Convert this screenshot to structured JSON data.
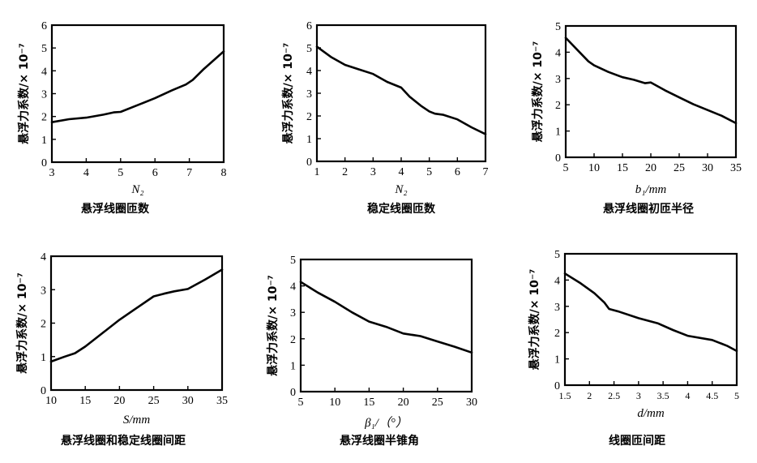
{
  "chart_data": [
    {
      "type": "line",
      "xlabel": "N₂",
      "ylabel": "悬浮力系数/× 10⁻⁷",
      "title": "悬浮线圈匝数",
      "xlim": [
        3,
        8
      ],
      "ylim": [
        0,
        6
      ],
      "xticks": [
        "3",
        "4",
        "5",
        "6",
        "7",
        "8"
      ],
      "yticks": [
        "0",
        "1",
        "2",
        "3",
        "4",
        "5",
        "6"
      ],
      "series": [
        {
          "x": [
            3,
            3.5,
            4,
            4.5,
            4.8,
            5,
            5.5,
            6,
            6.5,
            6.9,
            7.1,
            7.4,
            8
          ],
          "y": [
            1.75,
            1.88,
            1.95,
            2.08,
            2.18,
            2.2,
            2.5,
            2.8,
            3.15,
            3.4,
            3.6,
            4.05,
            4.85
          ]
        }
      ]
    },
    {
      "type": "line",
      "xlabel": "N₂",
      "ylabel": "悬浮力系数/× 10⁻⁷",
      "title": "稳定线圈匝数",
      "xlim": [
        1,
        7
      ],
      "ylim": [
        0,
        6
      ],
      "xticks": [
        "1",
        "2",
        "3",
        "4",
        "5",
        "6",
        "7"
      ],
      "yticks": [
        "0",
        "1",
        "2",
        "3",
        "4",
        "5",
        "6"
      ],
      "series": [
        {
          "x": [
            1,
            1.5,
            2,
            2.5,
            3,
            3.5,
            4,
            4.3,
            4.7,
            5,
            5.2,
            5.5,
            6,
            6.5,
            7
          ],
          "y": [
            5.05,
            4.6,
            4.25,
            4.05,
            3.85,
            3.5,
            3.25,
            2.85,
            2.45,
            2.2,
            2.1,
            2.05,
            1.85,
            1.5,
            1.2
          ]
        }
      ]
    },
    {
      "type": "line",
      "xlabel": "b₁/mm",
      "ylabel": "悬浮力系数/× 10⁻⁷",
      "title": "悬浮线圈初匝半径",
      "xlim": [
        5,
        35
      ],
      "ylim": [
        0,
        5
      ],
      "xticks": [
        "5",
        "10",
        "15",
        "20",
        "25",
        "30",
        "35"
      ],
      "yticks": [
        "0",
        "1",
        "2",
        "3",
        "4",
        "5"
      ],
      "series": [
        {
          "x": [
            5,
            7,
            9,
            10,
            12.5,
            15,
            17,
            19,
            20,
            22.5,
            25,
            27.5,
            30,
            32.5,
            35
          ],
          "y": [
            4.55,
            4.1,
            3.65,
            3.5,
            3.25,
            3.05,
            2.95,
            2.82,
            2.85,
            2.55,
            2.28,
            2.02,
            1.8,
            1.58,
            1.3
          ]
        }
      ]
    },
    {
      "type": "line",
      "xlabel": "S/mm",
      "ylabel": "悬浮力系数/× 10⁻⁷",
      "title": "悬浮线圈和稳定线圈间距",
      "xlim": [
        10,
        35
      ],
      "ylim": [
        0,
        4
      ],
      "xticks": [
        "10",
        "15",
        "20",
        "25",
        "30",
        "35"
      ],
      "yticks": [
        "0",
        "1",
        "2",
        "3",
        "4"
      ],
      "series": [
        {
          "x": [
            10,
            12,
            13.5,
            15,
            17.5,
            20,
            22.5,
            25,
            26.5,
            28,
            30,
            32.5,
            35
          ],
          "y": [
            0.85,
            1.0,
            1.1,
            1.3,
            1.7,
            2.1,
            2.45,
            2.8,
            2.88,
            2.95,
            3.02,
            3.3,
            3.6
          ]
        }
      ]
    },
    {
      "type": "line",
      "xlabel": "β₁/（°）",
      "ylabel": "悬浮力系数/× 10⁻⁷",
      "title": "悬浮线圈半锥角",
      "xlim": [
        5,
        30
      ],
      "ylim": [
        0,
        5
      ],
      "xticks": [
        "5",
        "10",
        "15",
        "20",
        "25",
        "30"
      ],
      "yticks": [
        "0",
        "1",
        "2",
        "3",
        "4",
        "5"
      ],
      "series": [
        {
          "x": [
            5,
            7.5,
            10,
            12.5,
            15,
            17.5,
            20,
            22.5,
            25,
            27.5,
            30
          ],
          "y": [
            4.15,
            3.75,
            3.4,
            3.0,
            2.65,
            2.45,
            2.2,
            2.1,
            1.9,
            1.7,
            1.48
          ]
        }
      ]
    },
    {
      "type": "line",
      "xlabel": "d/mm",
      "ylabel": "悬浮力系数/× 10⁻⁷",
      "title": "线圈匝间距",
      "xlim": [
        1.5,
        5
      ],
      "ylim": [
        0,
        5
      ],
      "xticks": [
        "1.5",
        "2",
        "2.5",
        "3",
        "3.5",
        "4",
        "4.5",
        "5"
      ],
      "yticks": [
        "0",
        "1",
        "2",
        "3",
        "4",
        "5"
      ],
      "series": [
        {
          "x": [
            1.5,
            1.8,
            2.1,
            2.3,
            2.4,
            2.6,
            3.0,
            3.4,
            3.7,
            4.0,
            4.5,
            4.8,
            5.0
          ],
          "y": [
            4.25,
            3.9,
            3.5,
            3.15,
            2.9,
            2.8,
            2.55,
            2.35,
            2.1,
            1.88,
            1.72,
            1.5,
            1.3
          ]
        }
      ]
    }
  ]
}
